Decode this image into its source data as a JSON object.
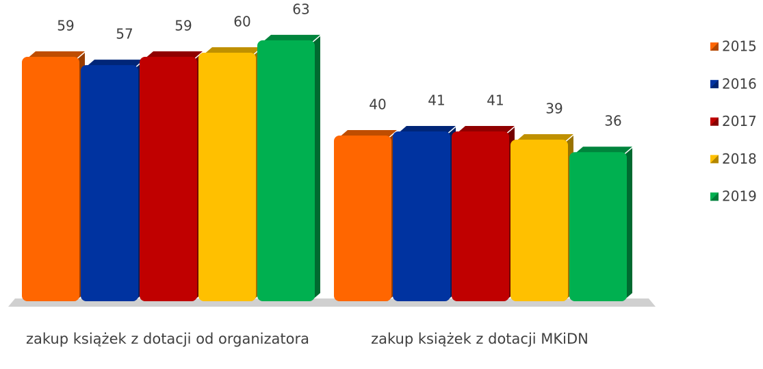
{
  "chart_data": {
    "type": "bar",
    "categories": [
      "zakup książek z dotacji od organizatora",
      "zakup książek z dotacji MKiDN"
    ],
    "series": [
      {
        "name": "2015",
        "color": "#ff6600",
        "values": [
          59,
          40
        ]
      },
      {
        "name": "2016",
        "color": "#0033a0",
        "values": [
          57,
          41
        ]
      },
      {
        "name": "2017",
        "color": "#c00000",
        "values": [
          59,
          41
        ]
      },
      {
        "name": "2018",
        "color": "#ffc000",
        "values": [
          60,
          39
        ]
      },
      {
        "name": "2019",
        "color": "#00b050",
        "values": [
          63,
          36
        ]
      }
    ],
    "legend": "right"
  }
}
